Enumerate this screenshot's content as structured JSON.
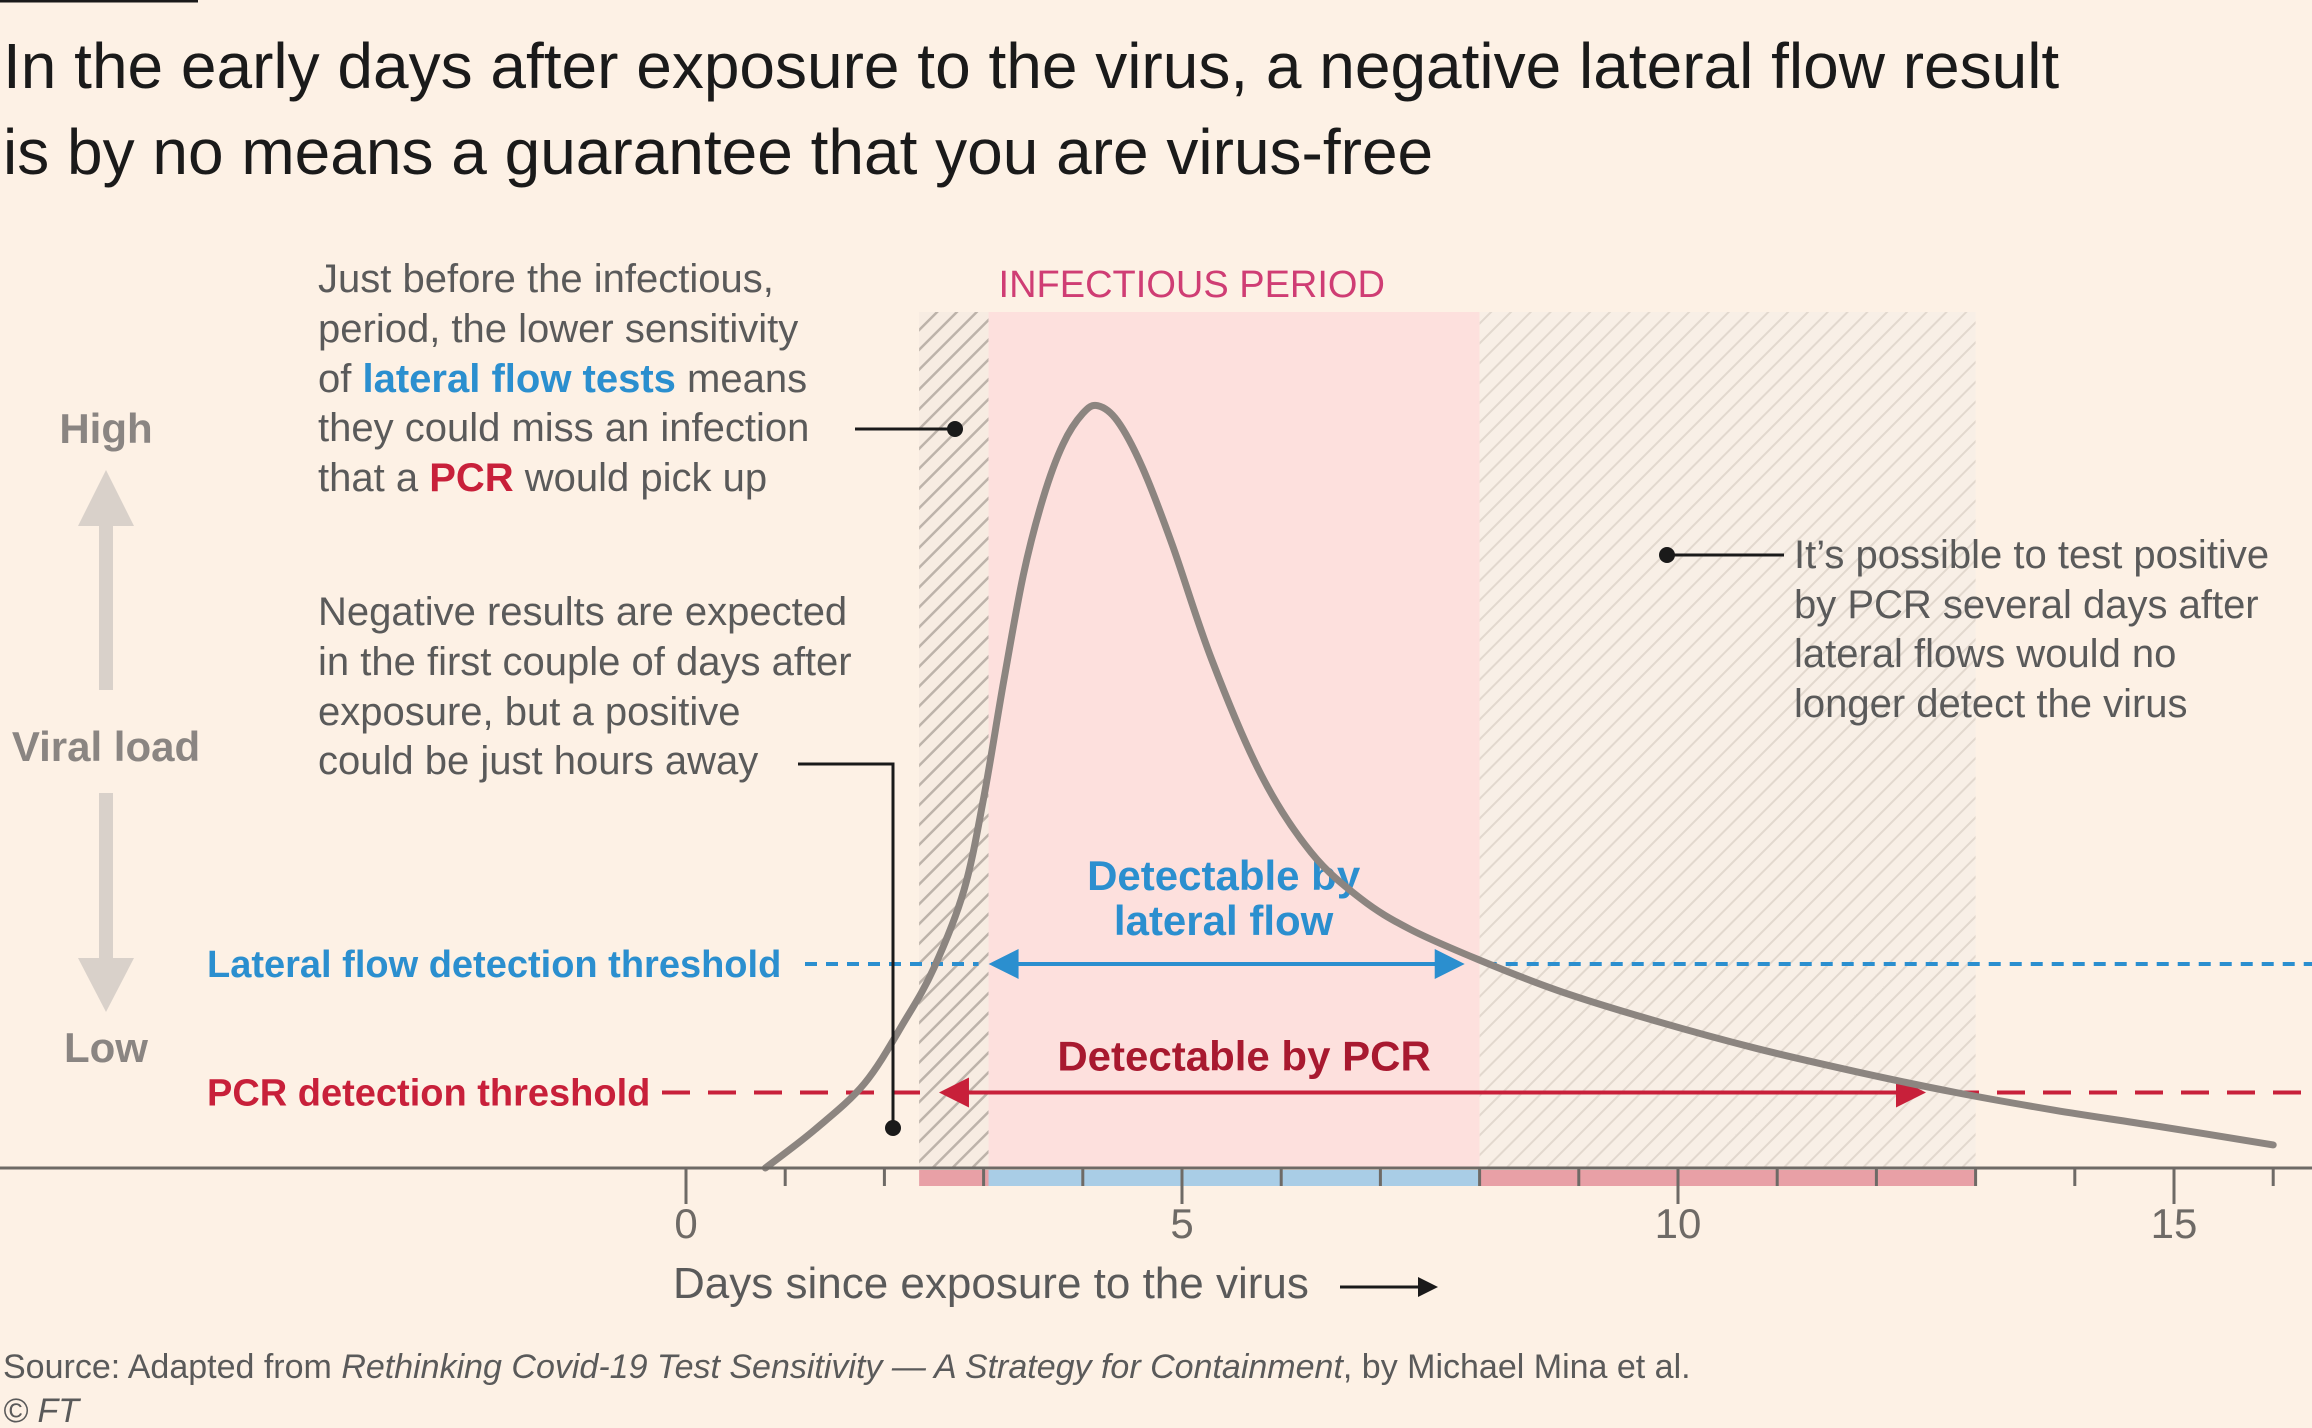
{
  "title_line1": "In the early days after exposure to the virus, a negative lateral flow result",
  "title_line2": "is by no means a guarantee that you are virus-free",
  "colors": {
    "background": "#fdf1e5",
    "infectious": "#fde0dd",
    "lateral_flow": "#2b8fcf",
    "pcr": "#c8203a",
    "curve": "#8c8580",
    "hatch": "#bdb3aa"
  },
  "chart_data": {
    "type": "line",
    "title": "In the early days after exposure to the virus, a negative lateral flow result is by no means a guarantee that you are virus-free",
    "xlabel": "Days since exposure to the virus",
    "ylabel": "Viral load",
    "y_high_label": "High",
    "y_low_label": "Low",
    "xlim": [
      -7,
      16
    ],
    "ylim": [
      0,
      1
    ],
    "x_ticks": [
      0,
      5,
      10,
      15
    ],
    "x_minor_ticks": [
      1,
      2,
      3,
      4,
      6,
      7,
      8,
      9,
      11,
      12,
      13,
      14,
      16
    ],
    "grid": false,
    "series": [
      {
        "name": "Viral load",
        "x": [
          0.8,
          1.3,
          1.8,
          2.2,
          2.5,
          2.8,
          3.0,
          3.2,
          3.4,
          3.6,
          3.8,
          4.0,
          4.15,
          4.35,
          4.6,
          4.9,
          5.3,
          5.8,
          6.3,
          6.8,
          7.3,
          8.0,
          8.8,
          9.8,
          10.8,
          11.8,
          12.8,
          13.8,
          14.8,
          16.0
        ],
        "values": [
          0.0,
          0.05,
          0.11,
          0.19,
          0.26,
          0.36,
          0.48,
          0.63,
          0.77,
          0.87,
          0.94,
          0.98,
          0.99,
          0.97,
          0.91,
          0.81,
          0.66,
          0.51,
          0.41,
          0.35,
          0.31,
          0.27,
          0.23,
          0.19,
          0.155,
          0.125,
          0.098,
          0.075,
          0.055,
          0.03
        ]
      }
    ],
    "thresholds": [
      {
        "name": "Lateral flow detection threshold",
        "value": 0.265,
        "style": "short-dash",
        "color": "#2b8fcf"
      },
      {
        "name": "PCR detection threshold",
        "value": 0.098,
        "style": "long-dash",
        "color": "#c8203a"
      }
    ],
    "regions": {
      "infectious_period": {
        "label": "INFECTIOUS PERIOD",
        "x_start": 3.05,
        "x_end": 8.0
      },
      "pcr_only_before": {
        "x_start": 2.35,
        "x_end": 3.05
      },
      "pcr_only_after": {
        "x_start": 8.0,
        "x_end": 13.0
      }
    },
    "detection_windows": [
      {
        "label_line1": "Detectable by",
        "label_line2": "lateral flow",
        "x_start": 3.05,
        "x_end": 7.85,
        "level": 0.265
      },
      {
        "label": "Detectable by PCR",
        "x_start": 2.55,
        "x_end": 12.5,
        "level": 0.098
      }
    ],
    "annotations": {
      "before": {
        "line1": "Just before the infectious,",
        "line2": "period, the lower sensitivity",
        "line3_pre": "of ",
        "line3_bold": "lateral flow tests",
        "line3_post": " means",
        "line4": "they could miss an infection",
        "line5_pre": "that a ",
        "line5_bold": "PCR",
        "line5_post": " would pick up"
      },
      "negative": {
        "line1": "Negative results are expected",
        "line2": "in the first couple of days after",
        "line3": "exposure, but a positive",
        "line4": "could be just hours away"
      },
      "after": {
        "line1": "It’s possible to test positive",
        "line2": "by PCR several days after",
        "line3": "lateral flows would no",
        "line4": "longer detect the virus"
      }
    }
  },
  "source_prefix": "Source: Adapted from ",
  "source_title": "Rethinking Covid-19 Test Sensitivity — A Strategy for Containment",
  "source_suffix": ", by Michael Mina et al.",
  "copyright": "© FT"
}
